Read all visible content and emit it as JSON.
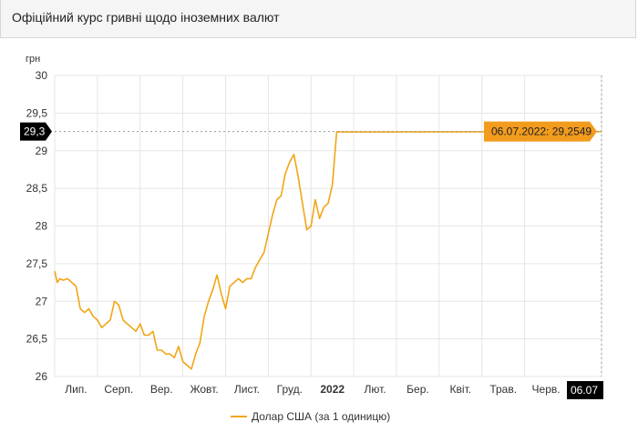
{
  "header": {
    "title": "Офіційний курс гривні щодо іноземних валют"
  },
  "colors": {
    "series": "#f2a516",
    "callout_bg": "#f29b1d",
    "marker_bg": "#000000",
    "grid": "#e6e6e6"
  },
  "chart_data": {
    "type": "line",
    "title": "",
    "ylabel": "грн",
    "xlabel": "",
    "ylim": [
      26,
      30
    ],
    "xlim": [
      0,
      64
    ],
    "yticks": [
      {
        "v": 30,
        "label": "30"
      },
      {
        "v": 29.5,
        "label": "29,5"
      },
      {
        "v": 29,
        "label": "29"
      },
      {
        "v": 28.5,
        "label": "28,5"
      },
      {
        "v": 28,
        "label": "28"
      },
      {
        "v": 27.5,
        "label": "27,5"
      },
      {
        "v": 27,
        "label": "27"
      },
      {
        "v": 26.5,
        "label": "26,5"
      },
      {
        "v": 26,
        "label": "26"
      }
    ],
    "xticks": [
      {
        "x": 2.5,
        "label": "Лип.",
        "bold": false
      },
      {
        "x": 7.5,
        "label": "Серп.",
        "bold": false
      },
      {
        "x": 12.5,
        "label": "Вер.",
        "bold": false
      },
      {
        "x": 17.5,
        "label": "Жовт.",
        "bold": false
      },
      {
        "x": 22.5,
        "label": "Лист.",
        "bold": false
      },
      {
        "x": 27.5,
        "label": "Груд.",
        "bold": false
      },
      {
        "x": 32.5,
        "label": "2022",
        "bold": true
      },
      {
        "x": 37.5,
        "label": "Лют.",
        "bold": false
      },
      {
        "x": 42.5,
        "label": "Бер.",
        "bold": false
      },
      {
        "x": 47.5,
        "label": "Квіт.",
        "bold": false
      },
      {
        "x": 52.5,
        "label": "Трав.",
        "bold": false
      },
      {
        "x": 57.5,
        "label": "Черв.",
        "bold": false
      }
    ],
    "grid": true,
    "legend_position": "bottom",
    "series": [
      {
        "name": "Долар США (за 1 одиницю)",
        "x": [
          0,
          0.3,
          0.6,
          1,
          1.5,
          2,
          2.5,
          3,
          3.5,
          4,
          4.5,
          5,
          5.5,
          6,
          6.5,
          7,
          7.5,
          8,
          8.5,
          9,
          9.5,
          10,
          10.5,
          11,
          11.5,
          12,
          12.5,
          13,
          13.5,
          14,
          14.5,
          15,
          15.5,
          16,
          16.5,
          17,
          17.5,
          18,
          18.5,
          19,
          19.5,
          20,
          20.5,
          21,
          21.5,
          22,
          22.5,
          23,
          23.5,
          24,
          24.5,
          25,
          25.5,
          26,
          26.5,
          27,
          27.5,
          28,
          28.5,
          29,
          29.5,
          30,
          30.5,
          31,
          31.5,
          32,
          32.5,
          33,
          33.5,
          34,
          34.5,
          35,
          35.5,
          36,
          36.5,
          37,
          37.5,
          38,
          38.5,
          39,
          39.5,
          40,
          64
        ],
        "values": [
          27.4,
          27.25,
          27.3,
          27.28,
          27.3,
          27.25,
          27.2,
          26.9,
          26.85,
          26.9,
          26.8,
          26.75,
          26.65,
          26.7,
          26.75,
          27.0,
          26.95,
          26.75,
          26.7,
          26.65,
          26.6,
          26.7,
          26.55,
          26.55,
          26.6,
          26.35,
          26.35,
          26.3,
          26.3,
          26.25,
          26.4,
          26.2,
          26.15,
          26.1,
          26.3,
          26.45,
          26.8,
          27.0,
          27.15,
          27.35,
          27.1,
          26.9,
          27.2,
          27.25,
          27.3,
          27.25,
          27.3,
          27.3,
          27.45,
          27.55,
          27.65,
          27.9,
          28.15,
          28.35,
          28.4,
          28.7,
          28.85,
          28.95,
          28.65,
          28.3,
          27.95,
          28.0,
          28.35,
          28.1,
          28.25,
          28.3,
          28.55,
          29.25,
          29.25,
          29.25,
          29.25,
          29.25,
          29.25,
          29.25,
          29.25,
          29.25,
          29.25,
          29.25,
          29.25,
          29.25,
          29.25,
          29.25,
          29.2549
        ]
      }
    ],
    "current": {
      "x": 64,
      "value": 29.2549,
      "callout": "06.07.2022: 29,2549",
      "y_marker": "29,3",
      "x_marker": "06.07"
    }
  }
}
